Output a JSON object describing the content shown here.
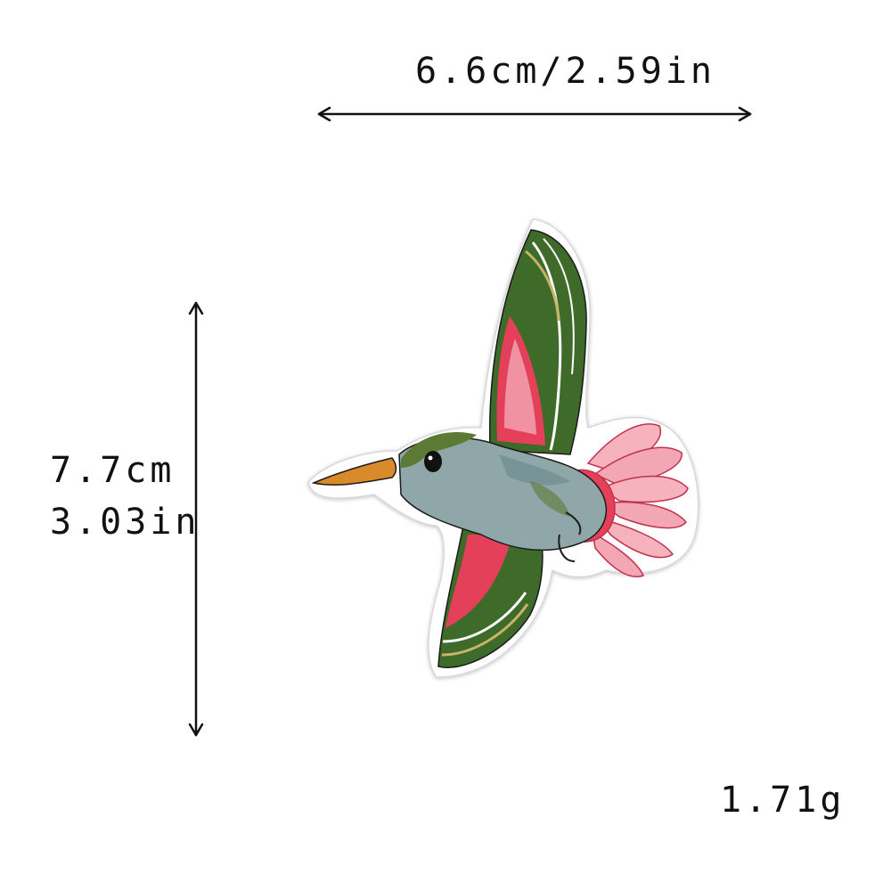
{
  "dimensions": {
    "width_label": "6.6cm/2.59in",
    "height_cm_label": "7.7cm",
    "height_in_label": "3.03in"
  },
  "weight_label": "1.71g",
  "patch": {
    "subject": "hummingbird-icon",
    "colors": {
      "wing_green": "#3f6b2a",
      "wing_red": "#e4405a",
      "wing_pink": "#f3a6b4",
      "body_grey_blue": "#8fa7a8",
      "head_green": "#5d7a34",
      "beak_orange": "#d98a2b",
      "tail_pink": "#f6b2bd",
      "outline": "#1b1b1b",
      "backing": "#ffffff"
    }
  }
}
